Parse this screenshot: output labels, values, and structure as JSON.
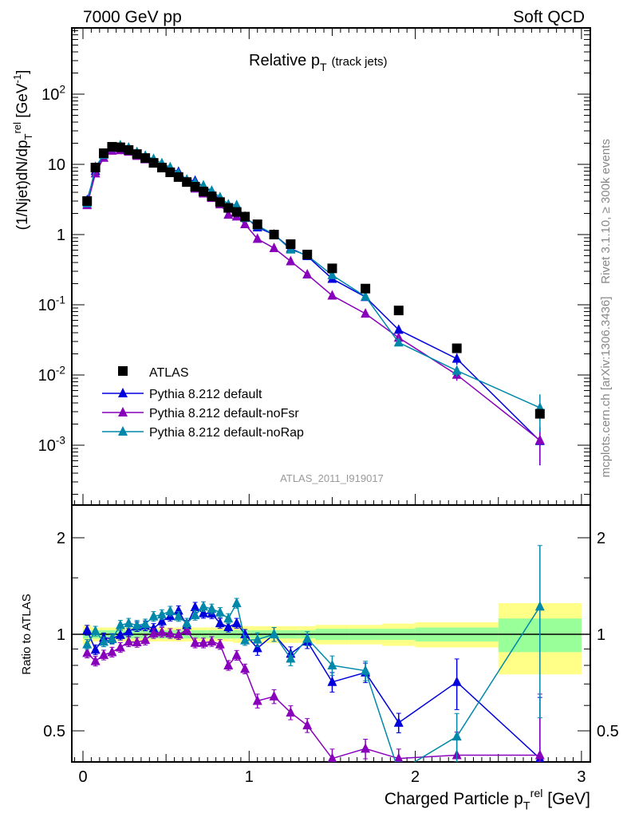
{
  "header": {
    "left": "7000 GeV pp",
    "right": "Soft QCD"
  },
  "side": {
    "top": "Rivet 3.1.10, ≥ 300k events",
    "bottom": "mcplots.cern.ch [arXiv:1306.3436]"
  },
  "chart_data": {
    "type": "line",
    "title": "Relative p",
    "title_sub": "T",
    "title_suffix": "(track jets)",
    "analysis": "ATLAS_2011_I919017",
    "ylabel": "(1/Njet)dN/dp_T^rel [GeV^-1]",
    "xlabel": "Charged Particle p_T^rel [GeV]",
    "ratio_ylabel": "Ratio to ATLAS",
    "xlim": [
      -0.07,
      3.05
    ],
    "ylim": [
      0.00014,
      870
    ],
    "ratio_ylim": [
      0.4,
      2.53
    ],
    "yscale": "log",
    "x_ticks": [
      "0",
      "1",
      "2",
      "3"
    ],
    "y_ticks": [
      "10^-3",
      "10^-2",
      "10^-1",
      "1",
      "10",
      "10^2"
    ],
    "ratio_ticks": [
      "0.5",
      "1",
      "2"
    ],
    "legend_position": "lower-left",
    "x": [
      0.025,
      0.075,
      0.125,
      0.175,
      0.225,
      0.275,
      0.325,
      0.375,
      0.425,
      0.475,
      0.525,
      0.575,
      0.625,
      0.675,
      0.725,
      0.775,
      0.825,
      0.875,
      0.925,
      0.975,
      1.05,
      1.15,
      1.25,
      1.35,
      1.5,
      1.7,
      1.9,
      2.25,
      2.75
    ],
    "data": {
      "name": "ATLAS",
      "color": "#000000",
      "values": [
        3.0,
        9.0,
        14.4,
        17.8,
        17.5,
        16,
        14,
        12.3,
        10.5,
        9.0,
        7.7,
        6.6,
        5.6,
        4.8,
        4.1,
        3.5,
        2.9,
        2.4,
        2.1,
        1.8,
        1.4,
        1.0,
        0.73,
        0.52,
        0.33,
        0.17,
        0.083,
        0.024,
        0.0028
      ],
      "band_stat": [
        0.03,
        0.03,
        0.03,
        0.03,
        0.03,
        0.03,
        0.03,
        0.03,
        0.03,
        0.03,
        0.03,
        0.03,
        0.03,
        0.03,
        0.03,
        0.03,
        0.03,
        0.03,
        0.03,
        0.03,
        0.03,
        0.03,
        0.03,
        0.03,
        0.04,
        0.04,
        0.04,
        0.05,
        0.12
      ],
      "band_total": [
        0.07,
        0.05,
        0.05,
        0.05,
        0.05,
        0.05,
        0.05,
        0.05,
        0.05,
        0.05,
        0.05,
        0.05,
        0.05,
        0.05,
        0.05,
        0.05,
        0.05,
        0.05,
        0.06,
        0.06,
        0.06,
        0.06,
        0.06,
        0.06,
        0.07,
        0.07,
        0.08,
        0.09,
        0.25
      ]
    },
    "series": [
      {
        "name": "Pythia 8.212 default",
        "color": "#0000dd",
        "ratio": [
          1.03,
          0.895,
          0.975,
          0.97,
          0.995,
          1.02,
          1.057,
          1.063,
          1.043,
          1.098,
          1.14,
          1.185,
          1.067,
          1.215,
          1.163,
          1.16,
          1.083,
          1.053,
          1.083,
          1.0,
          0.905,
          1.0,
          0.87,
          0.95,
          0.71,
          0.76,
          0.53,
          0.71,
          0.41
        ]
      },
      {
        "name": "Pythia 8.212 default-noFsr",
        "color": "#8800bb",
        "ratio": [
          0.875,
          0.825,
          0.862,
          0.88,
          0.91,
          0.948,
          0.944,
          0.96,
          1.006,
          1.015,
          1.006,
          0.998,
          1.033,
          0.94,
          0.94,
          0.95,
          0.93,
          0.8,
          0.86,
          0.78,
          0.62,
          0.64,
          0.57,
          0.52,
          0.41,
          0.44,
          0.41,
          0.42,
          0.42
        ]
      },
      {
        "name": "Pythia 8.212 default-noRap",
        "color": "#0088aa",
        "ratio": [
          0.93,
          1.023,
          0.948,
          0.966,
          1.067,
          1.083,
          1.067,
          1.077,
          1.137,
          1.152,
          1.181,
          1.137,
          1.083,
          1.147,
          1.22,
          1.2,
          1.17,
          1.12,
          1.25,
          0.957,
          0.963,
          1.0,
          0.84,
          0.97,
          0.8,
          0.77,
          0.35,
          0.48,
          1.22
        ]
      }
    ]
  }
}
